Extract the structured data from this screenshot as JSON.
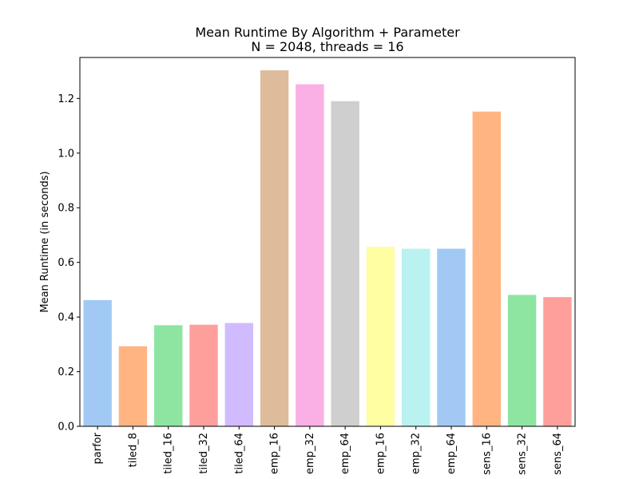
{
  "chart_data": {
    "type": "bar",
    "title": "Mean Runtime By Algorithm + Parameter",
    "subtitle": "N = 2048, threads = 16",
    "xlabel": "",
    "ylabel": "Mean Runtime (in seconds)",
    "ylim": [
      0,
      1.35
    ],
    "yticks": [
      "0.0",
      "0.2",
      "0.4",
      "0.6",
      "0.8",
      "1.0",
      "1.2"
    ],
    "categories": [
      "parfor",
      "tiled_8",
      "tiled_16",
      "tiled_32",
      "tiled_64",
      "emp_16",
      "emp_32",
      "emp_64",
      "emp_16",
      "emp_32",
      "emp_64",
      "sens_16",
      "sens_32",
      "sens_64"
    ],
    "values": [
      0.462,
      0.293,
      0.37,
      0.372,
      0.378,
      1.303,
      1.252,
      1.19,
      0.657,
      0.65,
      0.65,
      1.152,
      0.481,
      0.473
    ],
    "colors": [
      "#a1c9f4",
      "#ffb482",
      "#8de5a1",
      "#ff9f9b",
      "#d0bbff",
      "#debb9b",
      "#fab0e4",
      "#cfcfcf",
      "#fffea3",
      "#b9f2f0",
      "#a1c9f4",
      "#ffb482",
      "#8de5a1",
      "#ff9f9b"
    ],
    "grid": false,
    "legend": "none"
  }
}
